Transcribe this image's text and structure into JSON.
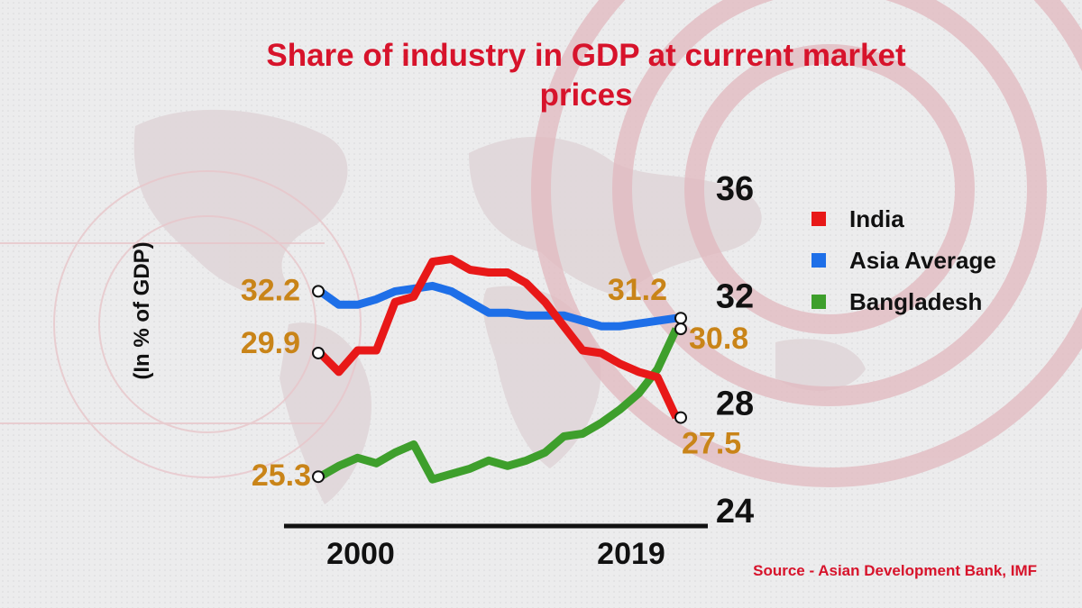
{
  "colors": {
    "title": "#d7132b",
    "annotation": "#c98418",
    "source": "#d7132b",
    "axis": "#111111"
  },
  "chart_data": {
    "type": "line",
    "title": "Share of industry in GDP at current market prices",
    "ylabel": "(In % of GDP)",
    "x_tick_labels": [
      "2000",
      "2019"
    ],
    "x": [
      2000,
      2001,
      2002,
      2003,
      2004,
      2005,
      2006,
      2007,
      2008,
      2009,
      2010,
      2011,
      2012,
      2013,
      2014,
      2015,
      2016,
      2017,
      2018,
      2019
    ],
    "y_ticks": [
      36,
      32,
      28,
      24
    ],
    "ylim": [
      24,
      36
    ],
    "grid": false,
    "legend_position": "top-right",
    "series": [
      {
        "name": "India",
        "color": "#e81818",
        "values": [
          29.9,
          29.2,
          30.0,
          30.0,
          31.8,
          32.0,
          33.3,
          33.4,
          33.0,
          32.9,
          32.9,
          32.5,
          31.8,
          30.9,
          30.0,
          29.9,
          29.5,
          29.2,
          29.0,
          27.5
        ]
      },
      {
        "name": "Asia Average",
        "color": "#1e6fe8",
        "values": [
          32.2,
          31.7,
          31.7,
          31.9,
          32.2,
          32.3,
          32.4,
          32.2,
          31.8,
          31.4,
          31.4,
          31.3,
          31.3,
          31.3,
          31.1,
          30.9,
          30.9,
          31.0,
          31.1,
          31.2
        ]
      },
      {
        "name": "Bangladesh",
        "color": "#3e9f2c",
        "values": [
          25.3,
          25.7,
          26.0,
          25.8,
          26.2,
          26.5,
          25.2,
          25.4,
          25.6,
          25.9,
          25.7,
          25.9,
          26.2,
          26.8,
          26.9,
          27.3,
          27.8,
          28.4,
          29.3,
          30.8
        ]
      }
    ],
    "annotations": [
      "32.2",
      "29.9",
      "25.3",
      "31.2",
      "30.8",
      "27.5"
    ],
    "source": "Source - Asian Development Bank, IMF"
  }
}
